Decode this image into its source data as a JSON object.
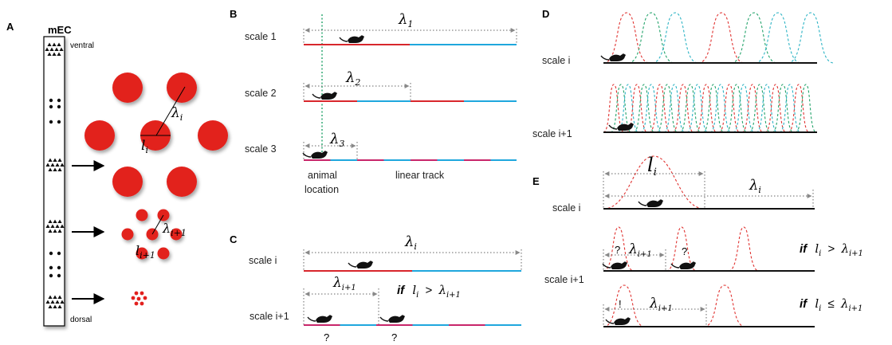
{
  "panels": {
    "a": "A",
    "b": "B",
    "c": "C",
    "d": "D",
    "e": "E"
  },
  "panel_a": {
    "region": "mEC",
    "ventral": "ventral",
    "dorsal": "dorsal",
    "lambda": "λ",
    "lambda_sub": "i",
    "lambda_next_sub": "i+1",
    "l": "l",
    "l_sub": "i",
    "l_next_sub": "i+1"
  },
  "panel_b": {
    "scale1": "scale 1",
    "scale2": "scale 2",
    "scale3": "scale 3",
    "lambda1_sub": "1",
    "lambda2_sub": "2",
    "lambda3_sub": "3",
    "animal_location_1": "animal",
    "animal_location_2": "location",
    "linear_track": "linear track"
  },
  "panel_c": {
    "scale_i": "scale i",
    "scale_i1": "scale i+1",
    "if": "if",
    "gt": ">",
    "question": "?"
  },
  "panel_d": {
    "scale_i": "scale i",
    "scale_i1": "scale i+1"
  },
  "panel_e": {
    "scale_i": "scale i",
    "scale_i1": "scale i+1",
    "if": "if",
    "gt": ">",
    "le": "≤",
    "question": "?",
    "exclaim": "!"
  },
  "colors": {
    "red": "#d8262c",
    "blue": "#1fa7dd",
    "magenta": "#c8266a",
    "grid_red": "#e2201e",
    "green": "#22a36a",
    "teal": "#2bb3c4"
  }
}
